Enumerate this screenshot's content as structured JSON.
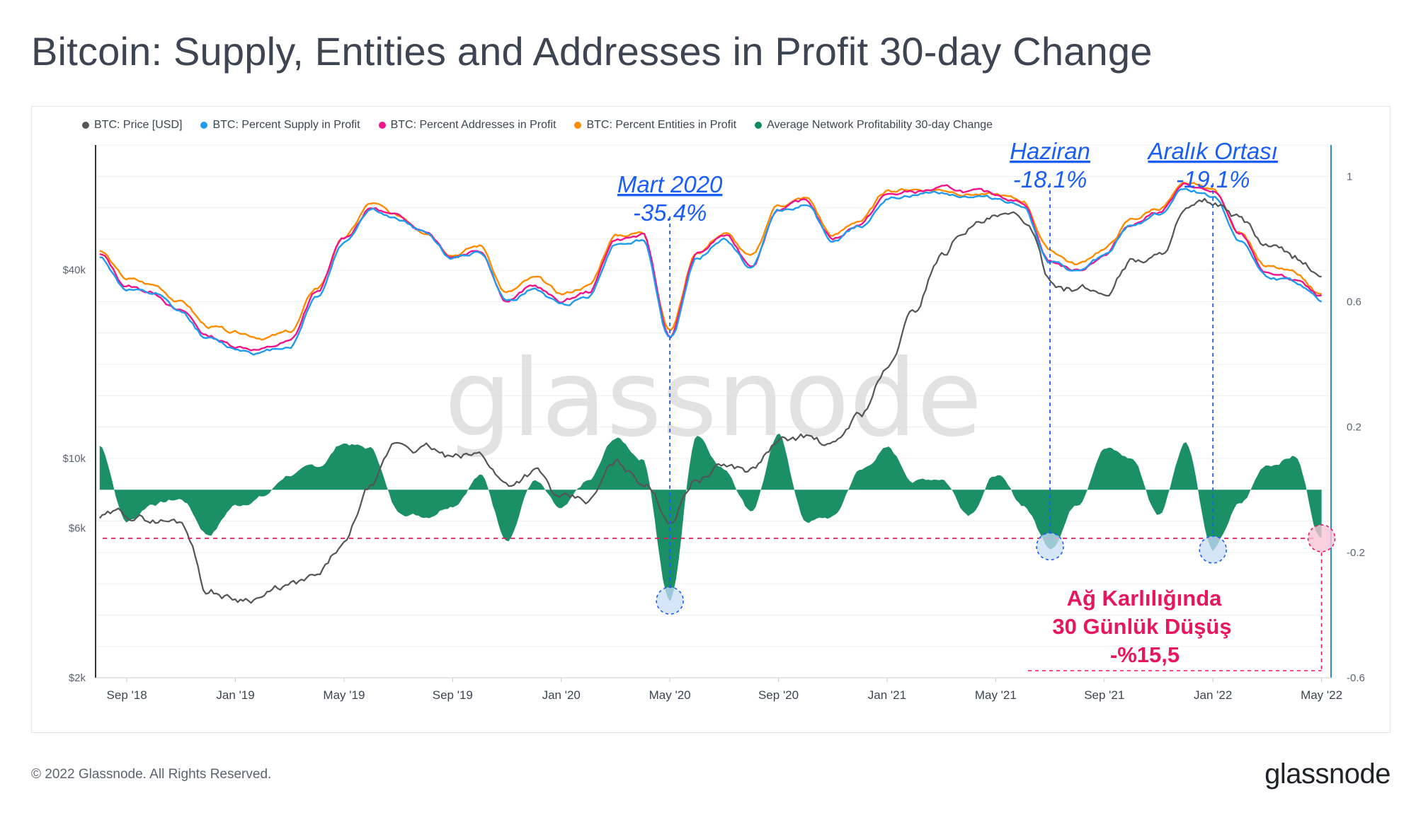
{
  "page": {
    "title": "Bitcoin: Supply, Entities and Addresses in Profit 30-day Change",
    "copyright": "© 2022 Glassnode. All Rights Reserved.",
    "brand": "glassnode",
    "watermark": "glassnode"
  },
  "legend": [
    {
      "label": "BTC: Price [USD]",
      "color": "#555555"
    },
    {
      "label": "BTC: Percent Supply in Profit",
      "color": "#1e9bf0"
    },
    {
      "label": "BTC: Percent Addresses in Profit",
      "color": "#f0138a"
    },
    {
      "label": "BTC: Percent Entities in Profit",
      "color": "#ff8c00"
    },
    {
      "label": "Average Network Profitability 30-day Change",
      "color": "#0f8a5f"
    }
  ],
  "chart_data": {
    "type": "line",
    "x_ticks": [
      "Sep '18",
      "Jan '19",
      "May '19",
      "Sep '19",
      "Jan '20",
      "May '20",
      "Sep '20",
      "Jan '21",
      "May '21",
      "Sep '21",
      "Jan '22",
      "May '22"
    ],
    "x_range": [
      "Aug '18",
      "May '22"
    ],
    "left_axis": {
      "scale": "log",
      "ticks": [
        "$2k",
        "$6k",
        "$10k",
        "$40k"
      ],
      "tick_values": [
        2000,
        6000,
        10000,
        40000
      ],
      "range": [
        2000,
        100000
      ]
    },
    "right_axis": {
      "ticks": [
        "1",
        "0.6",
        "0.2",
        "-0.2",
        "-0.6"
      ],
      "tick_values": [
        1,
        0.6,
        0.2,
        -0.2,
        -0.6
      ],
      "range": [
        -0.6,
        1.1
      ]
    },
    "months_index_note": "0 = Aug 2018, 45 = May 2022",
    "series": [
      {
        "name": "BTC: Price [USD]",
        "axis": "left",
        "color": "#555555",
        "points": [
          [
            0,
            6500
          ],
          [
            1,
            6600
          ],
          [
            2,
            6400
          ],
          [
            3,
            6300
          ],
          [
            4,
            3800
          ],
          [
            5,
            3600
          ],
          [
            6,
            3700
          ],
          [
            7,
            3900
          ],
          [
            8,
            4100
          ],
          [
            9,
            5200
          ],
          [
            10,
            8000
          ],
          [
            11,
            11000
          ],
          [
            12,
            10800
          ],
          [
            13,
            9900
          ],
          [
            14,
            10200
          ],
          [
            15,
            8300
          ],
          [
            16,
            9200
          ],
          [
            17,
            7300
          ],
          [
            18,
            7200
          ],
          [
            19,
            9500
          ],
          [
            20,
            8500
          ],
          [
            21,
            6500
          ],
          [
            22,
            8800
          ],
          [
            23,
            9500
          ],
          [
            24,
            9200
          ],
          [
            25,
            11200
          ],
          [
            26,
            11700
          ],
          [
            27,
            10800
          ],
          [
            28,
            13700
          ],
          [
            29,
            19000
          ],
          [
            30,
            29000
          ],
          [
            31,
            45000
          ],
          [
            32,
            56000
          ],
          [
            33,
            58000
          ],
          [
            34,
            57000
          ],
          [
            35,
            37000
          ],
          [
            36,
            35000
          ],
          [
            37,
            33500
          ],
          [
            38,
            43000
          ],
          [
            39,
            44000
          ],
          [
            40,
            61000
          ],
          [
            41,
            64000
          ],
          [
            42,
            57000
          ],
          [
            43,
            47000
          ],
          [
            44,
            43000
          ],
          [
            45,
            38500
          ]
        ]
      },
      {
        "name": "BTC: Percent Supply in Profit",
        "axis": "right",
        "color": "#1e9bf0",
        "points": [
          [
            0,
            0.74
          ],
          [
            1,
            0.64
          ],
          [
            2,
            0.62
          ],
          [
            3,
            0.56
          ],
          [
            4,
            0.48
          ],
          [
            5,
            0.45
          ],
          [
            6,
            0.44
          ],
          [
            7,
            0.46
          ],
          [
            8,
            0.62
          ],
          [
            9,
            0.79
          ],
          [
            10,
            0.9
          ],
          [
            11,
            0.86
          ],
          [
            12,
            0.82
          ],
          [
            13,
            0.74
          ],
          [
            14,
            0.76
          ],
          [
            15,
            0.6
          ],
          [
            16,
            0.64
          ],
          [
            17,
            0.59
          ],
          [
            18,
            0.62
          ],
          [
            19,
            0.79
          ],
          [
            20,
            0.8
          ],
          [
            21,
            0.48
          ],
          [
            22,
            0.74
          ],
          [
            23,
            0.8
          ],
          [
            24,
            0.71
          ],
          [
            25,
            0.89
          ],
          [
            26,
            0.91
          ],
          [
            27,
            0.79
          ],
          [
            28,
            0.84
          ],
          [
            29,
            0.93
          ],
          [
            30,
            0.94
          ],
          [
            31,
            0.95
          ],
          [
            32,
            0.94
          ],
          [
            33,
            0.93
          ],
          [
            34,
            0.91
          ],
          [
            35,
            0.72
          ],
          [
            36,
            0.69
          ],
          [
            37,
            0.74
          ],
          [
            38,
            0.84
          ],
          [
            39,
            0.88
          ],
          [
            40,
            0.96
          ],
          [
            41,
            0.94
          ],
          [
            42,
            0.8
          ],
          [
            43,
            0.68
          ],
          [
            44,
            0.66
          ],
          [
            45,
            0.6
          ]
        ]
      },
      {
        "name": "BTC: Percent Addresses in Profit",
        "axis": "right",
        "color": "#f0138a",
        "points": [
          [
            0,
            0.75
          ],
          [
            1,
            0.65
          ],
          [
            2,
            0.63
          ],
          [
            3,
            0.57
          ],
          [
            4,
            0.49
          ],
          [
            5,
            0.46
          ],
          [
            6,
            0.45
          ],
          [
            7,
            0.47
          ],
          [
            8,
            0.63
          ],
          [
            9,
            0.8
          ],
          [
            10,
            0.9
          ],
          [
            11,
            0.87
          ],
          [
            12,
            0.83
          ],
          [
            13,
            0.75
          ],
          [
            14,
            0.77
          ],
          [
            15,
            0.61
          ],
          [
            16,
            0.65
          ],
          [
            17,
            0.6
          ],
          [
            18,
            0.63
          ],
          [
            19,
            0.8
          ],
          [
            20,
            0.81
          ],
          [
            21,
            0.49
          ],
          [
            22,
            0.75
          ],
          [
            23,
            0.81
          ],
          [
            24,
            0.72
          ],
          [
            25,
            0.9
          ],
          [
            26,
            0.92
          ],
          [
            27,
            0.8
          ],
          [
            28,
            0.85
          ],
          [
            29,
            0.94
          ],
          [
            30,
            0.95
          ],
          [
            31,
            0.96
          ],
          [
            32,
            0.95
          ],
          [
            33,
            0.94
          ],
          [
            34,
            0.92
          ],
          [
            35,
            0.73
          ],
          [
            36,
            0.7
          ],
          [
            37,
            0.75
          ],
          [
            38,
            0.85
          ],
          [
            39,
            0.89
          ],
          [
            40,
            0.97
          ],
          [
            41,
            0.95
          ],
          [
            42,
            0.81
          ],
          [
            43,
            0.69
          ],
          [
            44,
            0.67
          ],
          [
            45,
            0.61
          ]
        ]
      },
      {
        "name": "BTC: Percent Entities in Profit",
        "axis": "right",
        "color": "#ff8c00",
        "points": [
          [
            0,
            0.76
          ],
          [
            1,
            0.67
          ],
          [
            2,
            0.65
          ],
          [
            3,
            0.6
          ],
          [
            4,
            0.52
          ],
          [
            5,
            0.5
          ],
          [
            6,
            0.49
          ],
          [
            7,
            0.5
          ],
          [
            8,
            0.64
          ],
          [
            9,
            0.8
          ],
          [
            10,
            0.91
          ],
          [
            11,
            0.87
          ],
          [
            12,
            0.83
          ],
          [
            13,
            0.76
          ],
          [
            14,
            0.78
          ],
          [
            15,
            0.63
          ],
          [
            16,
            0.67
          ],
          [
            17,
            0.62
          ],
          [
            18,
            0.65
          ],
          [
            19,
            0.81
          ],
          [
            20,
            0.82
          ],
          [
            21,
            0.51
          ],
          [
            22,
            0.76
          ],
          [
            23,
            0.82
          ],
          [
            24,
            0.74
          ],
          [
            25,
            0.91
          ],
          [
            26,
            0.93
          ],
          [
            27,
            0.81
          ],
          [
            28,
            0.86
          ],
          [
            29,
            0.95
          ],
          [
            30,
            0.96
          ],
          [
            31,
            0.96
          ],
          [
            32,
            0.95
          ],
          [
            33,
            0.94
          ],
          [
            34,
            0.92
          ],
          [
            35,
            0.76
          ],
          [
            36,
            0.72
          ],
          [
            37,
            0.77
          ],
          [
            38,
            0.86
          ],
          [
            39,
            0.9
          ],
          [
            40,
            0.97
          ],
          [
            41,
            0.95
          ],
          [
            42,
            0.82
          ],
          [
            43,
            0.71
          ],
          [
            44,
            0.69
          ],
          [
            45,
            0.62
          ]
        ]
      },
      {
        "name": "Average Network Profitability 30-day Change",
        "axis": "right",
        "type": "area",
        "color": "#0f8a5f",
        "points": [
          [
            0,
            0.14
          ],
          [
            1,
            -0.1
          ],
          [
            2,
            -0.04
          ],
          [
            3,
            -0.03
          ],
          [
            4,
            -0.14
          ],
          [
            5,
            -0.05
          ],
          [
            6,
            -0.02
          ],
          [
            7,
            0.05
          ],
          [
            8,
            0.07
          ],
          [
            9,
            0.15
          ],
          [
            10,
            0.13
          ],
          [
            11,
            -0.07
          ],
          [
            12,
            -0.08
          ],
          [
            13,
            -0.04
          ],
          [
            14,
            0.05
          ],
          [
            15,
            -0.15
          ],
          [
            16,
            0.03
          ],
          [
            17,
            -0.07
          ],
          [
            18,
            0.02
          ],
          [
            19,
            0.16
          ],
          [
            20,
            0.1
          ],
          [
            21,
            -0.354
          ],
          [
            22,
            0.18
          ],
          [
            23,
            0.07
          ],
          [
            24,
            -0.06
          ],
          [
            25,
            0.17
          ],
          [
            26,
            -0.1
          ],
          [
            27,
            -0.09
          ],
          [
            28,
            0.06
          ],
          [
            29,
            0.13
          ],
          [
            30,
            0.03
          ],
          [
            31,
            0.04
          ],
          [
            32,
            -0.07
          ],
          [
            33,
            0.05
          ],
          [
            34,
            -0.05
          ],
          [
            35,
            -0.181
          ],
          [
            36,
            -0.04
          ],
          [
            37,
            0.14
          ],
          [
            38,
            0.1
          ],
          [
            39,
            -0.08
          ],
          [
            40,
            0.16
          ],
          [
            41,
            -0.191
          ],
          [
            42,
            -0.05
          ],
          [
            43,
            0.08
          ],
          [
            44,
            0.11
          ],
          [
            45,
            -0.155
          ]
        ]
      }
    ],
    "reference_line": {
      "value": -0.155,
      "axis": "right",
      "color": "#e8175d",
      "style": "dashed"
    },
    "annotations": [
      {
        "line1": "Mart 2020",
        "line2": "-35.4%",
        "month": 21,
        "value": -0.354
      },
      {
        "line1": "Haziran",
        "line2": "-18.1%",
        "month": 35,
        "value": -0.181
      },
      {
        "line1": "Aralık Ortası",
        "line2": "-19.1%",
        "month": 41,
        "value": -0.191
      }
    ],
    "callout": {
      "lines": [
        "Ağ Karlılığında",
        "30 Günlük Düşüş",
        "-%15,5"
      ],
      "month": 45,
      "value": -0.155,
      "color": "#e8175d"
    }
  }
}
